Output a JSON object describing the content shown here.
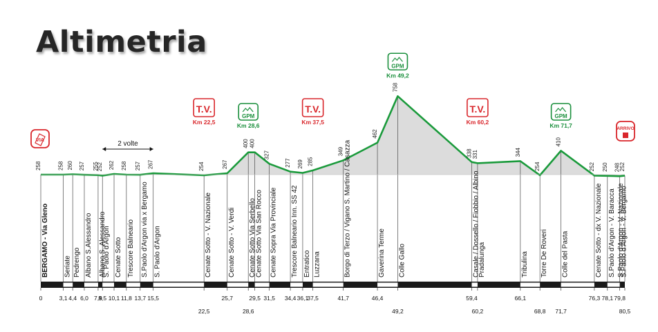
{
  "title": "Altimetria",
  "note": {
    "label": "2 volte",
    "from_km": 8.5,
    "to_km": 15.5
  },
  "colors": {
    "profile": "#1a9a3b",
    "fill": "#dcdcdc",
    "tv": "#d9262b",
    "gpm": "#1a8f3c",
    "bar": "#1a1a1a"
  },
  "chart_data": {
    "type": "area",
    "title": "Altimetria",
    "xlabel": "",
    "ylabel": "",
    "x_unit": "km",
    "y_unit": "m",
    "xlim": [
      0,
      80.5
    ],
    "ylim": [
      200,
      800
    ],
    "points": [
      {
        "km": 0,
        "alt": 258,
        "name": "BERGAMO - Via Gleno",
        "km_label": "0",
        "alt_label": "258"
      },
      {
        "km": 3.1,
        "alt": 258,
        "name": "Seriate",
        "km_label": "3,1",
        "alt_label": "258"
      },
      {
        "km": 4.4,
        "alt": 260,
        "name": "Pedrengo",
        "km_label": "4,4",
        "alt_label": "260"
      },
      {
        "km": 6.0,
        "alt": 257,
        "name": "Albano S.Alessandro",
        "km_label": "6,0",
        "alt_label": "257"
      },
      {
        "km": 7.9,
        "alt": 255,
        "name": "Albano S. Alessandro",
        "km_label": "7,9",
        "alt_label": "255"
      },
      {
        "km": 8.5,
        "alt": 252,
        "name": "S. Paolo d'Argon",
        "km_label": "8,5",
        "alt_label": "252"
      },
      {
        "km": 10.1,
        "alt": 262,
        "name": "Cenate Sotto",
        "km_label": "10,1",
        "alt_label": "262"
      },
      {
        "km": 11.8,
        "alt": 258,
        "name": "Trescore Balneario",
        "km_label": "11,8",
        "alt_label": "258"
      },
      {
        "km": 13.7,
        "alt": 257,
        "name": "S.Paolo d'Argon via x Bergamo",
        "km_label": "13,7",
        "alt_label": "257"
      },
      {
        "km": 15.5,
        "alt": 267,
        "name": "S. Paolo d'Argon",
        "km_label": "15,5",
        "alt_label": "267"
      },
      {
        "km": 22.5,
        "alt": 254,
        "name": "Cenate Sotto - V. Nazionale",
        "km_label": "22,5",
        "alt_label": "254",
        "lower": true
      },
      {
        "km": 25.7,
        "alt": 267,
        "name": "Cenate Sotto - V. Verdi",
        "km_label": "25,7",
        "alt_label": "267"
      },
      {
        "km": 28.6,
        "alt": 400,
        "name": "Cenate Sotto  Via Serbello",
        "km_label": "28,6",
        "alt_label": "400",
        "lower": true
      },
      {
        "km": 29.5,
        "alt": 400,
        "name": "Cenate Sotto  Via San Rocco",
        "km_label": "29,5",
        "alt_label": "400"
      },
      {
        "km": 31.5,
        "alt": 327,
        "name": "Cenate Sopra Via Provinciale",
        "km_label": "31,5",
        "alt_label": "327"
      },
      {
        "km": 34.4,
        "alt": 277,
        "name": "Trescore Balneario Inn. SS 42",
        "km_label": "34,4",
        "alt_label": "277"
      },
      {
        "km": 36.1,
        "alt": 269,
        "name": "Entratico",
        "km_label": "36,1",
        "alt_label": "269"
      },
      {
        "km": 37.5,
        "alt": 285,
        "name": "Luzzana",
        "km_label": "37,5",
        "alt_label": "285"
      },
      {
        "km": 41.7,
        "alt": 349,
        "name": "Borgo di Terzo / Vigano S. Martino / Casazza",
        "km_label": "41,7",
        "alt_label": "349"
      },
      {
        "km": 46.4,
        "alt": 462,
        "name": "Gaverina Terme",
        "km_label": "46,4",
        "alt_label": "462"
      },
      {
        "km": 49.2,
        "alt": 758,
        "name": "Colle Gallo",
        "km_label": "49,2",
        "alt_label": "758",
        "lower": true
      },
      {
        "km": 59.4,
        "alt": 338,
        "name": "Casale / Dossello / Fiobbio / Albino",
        "km_label": "59,4",
        "alt_label": "338"
      },
      {
        "km": 60.2,
        "alt": 331,
        "name": "Pradalunga",
        "km_label": "60,2",
        "alt_label": "331",
        "lower": true
      },
      {
        "km": 66.1,
        "alt": 344,
        "name": "Tribulina",
        "km_label": "66,1",
        "alt_label": "344"
      },
      {
        "km": 68.8,
        "alt": 254,
        "name": "Torre De Roveri",
        "km_label": "68,8",
        "alt_label": "254",
        "lower": true
      },
      {
        "km": 71.7,
        "alt": 410,
        "name": "Colle del Pasta",
        "km_label": "71,7",
        "alt_label": "410",
        "lower": true
      },
      {
        "km": 76.3,
        "alt": 252,
        "name": "Cenate Sotto - dx V. Nazionale",
        "km_label": "76,3",
        "alt_label": "252"
      },
      {
        "km": 78.1,
        "alt": 250,
        "name": "S.Paolo d'Argon - V. Baracca",
        "km_label": "78,1",
        "alt_label": "250"
      },
      {
        "km": 79.8,
        "alt": 248,
        "name": "S.Paolo d'Argon - V. Bergamo",
        "km_label": "79,8",
        "alt_label": "248"
      },
      {
        "km": 80.5,
        "alt": 252,
        "name": "S.Paolo d'Argon - V. Nazionale",
        "km_label": "80,5",
        "alt_label": "252",
        "lower": true
      }
    ],
    "markers": [
      {
        "type": "start",
        "km": 0,
        "label": "VIA"
      },
      {
        "type": "tv",
        "km": 22.5,
        "label": "T.V.",
        "km_text": "Km 22,5"
      },
      {
        "type": "gpm",
        "km": 28.6,
        "label": "GPM",
        "km_text": "Km 28,6"
      },
      {
        "type": "tv",
        "km": 37.5,
        "label": "T.V.",
        "km_text": "Km 37,5"
      },
      {
        "type": "gpm",
        "km": 49.2,
        "label": "GPM",
        "km_text": "Km 49,2"
      },
      {
        "type": "tv",
        "km": 60.2,
        "label": "T.V.",
        "km_text": "Km 60,2"
      },
      {
        "type": "gpm",
        "km": 71.7,
        "label": "GPM",
        "km_text": "Km 71,7"
      },
      {
        "type": "finish",
        "km": 80.5,
        "label": "ARRIVO"
      }
    ]
  }
}
